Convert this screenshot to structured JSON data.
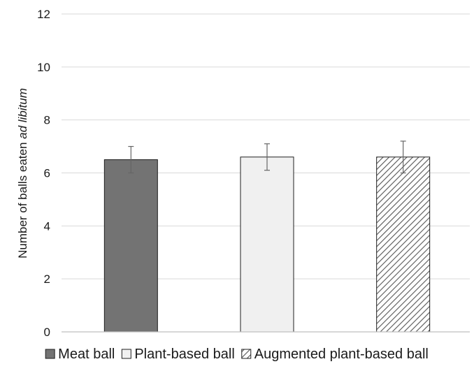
{
  "chart_data": {
    "type": "bar",
    "categories": [
      "Meat ball",
      "Plant-based ball",
      "Augmented plant-based ball"
    ],
    "values": [
      6.5,
      6.6,
      6.6
    ],
    "error_low": [
      6.0,
      6.1,
      6.0
    ],
    "error_high": [
      7.0,
      7.1,
      7.2
    ],
    "ylabel_main": "Number of balls eaten ",
    "ylabel_italic": "ad libitum",
    "xlabel": "",
    "ylim": [
      0,
      12
    ],
    "yticks": [
      0,
      2,
      4,
      6,
      8,
      10,
      12
    ],
    "grid": true,
    "legend_position": "bottom",
    "legend": [
      {
        "label": "Meat ball",
        "style": "solid",
        "color": "#737373"
      },
      {
        "label": "Plant-based ball",
        "style": "solid",
        "color": "#f0f0f0"
      },
      {
        "label": "Augmented plant-based ball",
        "style": "hatched",
        "color": "#555555"
      }
    ],
    "colors": {
      "meat": "#737373",
      "plant": "#f0f0f0",
      "augmented_hatch": "#555555",
      "grid": "#d9d9d9",
      "axis": "#bfbfbf",
      "error_bar": "#666666"
    }
  }
}
